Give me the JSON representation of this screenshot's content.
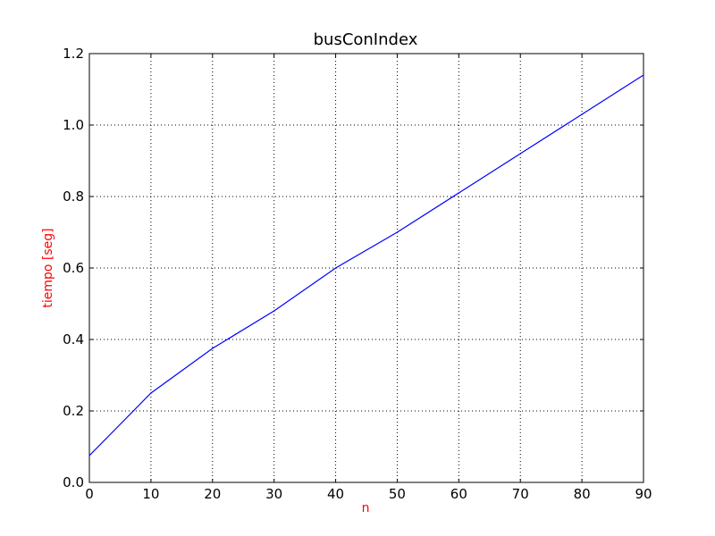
{
  "chart_data": {
    "type": "line",
    "title": "busConIndex",
    "xlabel": "n",
    "ylabel": "tiempo [seg]",
    "label_color": "#ff0000",
    "xlim": [
      0,
      90
    ],
    "ylim": [
      0.0,
      1.2
    ],
    "xticks": [
      "0",
      "10",
      "20",
      "30",
      "40",
      "50",
      "60",
      "70",
      "80",
      "90"
    ],
    "yticks": [
      "0.0",
      "0.2",
      "0.4",
      "0.6",
      "0.8",
      "1.0",
      "1.2"
    ],
    "grid": true,
    "series": [
      {
        "color": "#0000ff",
        "x": [
          0,
          10,
          20,
          30,
          40,
          50,
          60,
          70,
          80,
          90
        ],
        "y": [
          0.075,
          0.25,
          0.375,
          0.48,
          0.6,
          0.7,
          0.81,
          0.92,
          1.03,
          1.14
        ]
      }
    ]
  }
}
